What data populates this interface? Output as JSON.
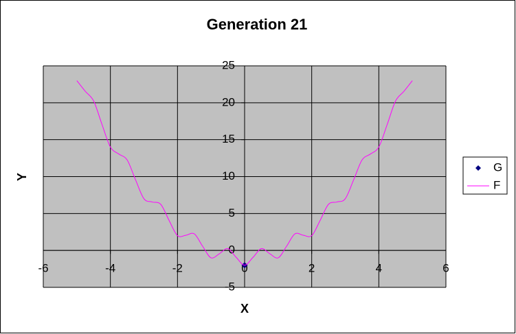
{
  "chart_data": {
    "type": "scatter",
    "title": "Generation 21",
    "x_label": "X",
    "y_label": "Y",
    "xlim": [
      -6,
      6
    ],
    "ylim": [
      -5,
      25
    ],
    "xticks": [
      -6,
      -4,
      -2,
      0,
      2,
      4,
      6
    ],
    "yticks": [
      -5,
      0,
      5,
      10,
      15,
      20,
      25
    ],
    "grid": true,
    "series": [
      {
        "name": "G",
        "color": "#000080",
        "marker": "diamond",
        "x": [
          0
        ],
        "values": [
          -2
        ]
      },
      {
        "name": "F",
        "color": "#ff00ff",
        "line": true,
        "x": [
          -5,
          -4.75,
          -4.5,
          -4.25,
          -4,
          -3.75,
          -3.5,
          -3.25,
          -3,
          -2.75,
          -2.5,
          -2.25,
          -2,
          -1.75,
          -1.5,
          -1.25,
          -1,
          -0.75,
          -0.5,
          -0.25,
          0,
          0.25,
          0.5,
          0.75,
          1,
          1.25,
          1.5,
          1.75,
          2,
          2.25,
          2.5,
          2.75,
          3,
          3.25,
          3.5,
          3.75,
          4,
          4.25,
          4.5,
          4.75,
          5
        ],
        "values": [
          23,
          21.56,
          20.25,
          17.06,
          14,
          13.06,
          12.25,
          9.56,
          7,
          6.56,
          6.25,
          4.06,
          2,
          2.06,
          2.25,
          0.56,
          -1,
          -0.44,
          0.25,
          -0.94,
          -2,
          -0.94,
          0.25,
          -0.44,
          -1,
          0.56,
          2.25,
          2.06,
          2,
          4.06,
          6.25,
          6.56,
          7,
          9.56,
          12.25,
          13.06,
          14,
          17.06,
          20.25,
          21.56,
          23
        ]
      }
    ],
    "legend": "right"
  }
}
